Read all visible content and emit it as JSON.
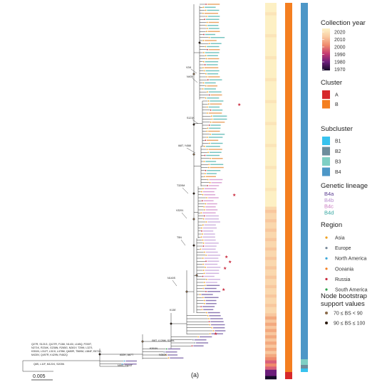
{
  "legend": {
    "collection_year": {
      "title": "Collection year",
      "ticks": [
        "2020",
        "2010",
        "2000",
        "1990",
        "1980",
        "1970"
      ],
      "colors": [
        "#fdf3c8",
        "#f9c9a0",
        "#ef8a6c",
        "#c63a72",
        "#6b1d7a",
        "#150b28"
      ]
    },
    "cluster": {
      "title": "Cluster",
      "items": [
        {
          "label": "A",
          "color": "#d7282a"
        },
        {
          "label": "B",
          "color": "#f47f20"
        }
      ]
    },
    "subcluster": {
      "title": "Subcluster",
      "items": [
        {
          "label": "B1",
          "color": "#37c2ee"
        },
        {
          "label": "B2",
          "color": "#6d8d9c"
        },
        {
          "label": "B3",
          "color": "#7fcfc4"
        },
        {
          "label": "B4",
          "color": "#4d97c7"
        }
      ]
    },
    "genetic_lineage": {
      "title": "Genetic lineage",
      "items": [
        {
          "label": "B4a",
          "color": "#5b3d91"
        },
        {
          "label": "B4b",
          "color": "#b98fd0"
        },
        {
          "label": "B4c",
          "color": "#c879c0"
        },
        {
          "label": "B4d",
          "color": "#33a6a0"
        }
      ]
    },
    "region": {
      "title": "Region",
      "items": [
        {
          "label": "Asia",
          "color": "#f0a020"
        },
        {
          "label": "Europe",
          "color": "#7a8a9a"
        },
        {
          "label": "North America",
          "color": "#3aa7d9"
        },
        {
          "label": "Oceania",
          "color": "#f47f20"
        },
        {
          "label": "Russia",
          "color": "#c8263a"
        },
        {
          "label": "South America",
          "color": "#2aa04a"
        }
      ]
    },
    "bootstrap": {
      "title_line1": "Node bootstrap",
      "title_line2": "support values",
      "items": [
        {
          "label": "70 ≤ BS < 90",
          "color": "#8a6a4a"
        },
        {
          "label": "90 ≤ BS ≤ 100",
          "color": "#2a1a10"
        }
      ]
    }
  },
  "mutations": {
    "m1": "V24I",
    "m2": "N40D",
    "m3": "S121K",
    "m4": "I68T, Y458I",
    "m5": "T329M",
    "m6": "V3291",
    "m7": "T5N",
    "m8": "N140S",
    "m9": "K13E",
    "m10": "I58T, L126M, S255L",
    "m11": "K391N",
    "m12": "N363K",
    "m13": "A52K, A67T",
    "m14": "N95T, P603T",
    "root_line1": "Q27R, S121G, Q127R, F136I, N143I, L165Q, P200T,",
    "root_line2": "N271K, R234K, G236N, R265G, N281Y, T29M, L327I,",
    "root_line3": "K351N, L312T, L313I, L478M, Q489R, T569M, L584F, E671K,",
    "root_line4": "M430V, Q497R, K429N, R462Q",
    "root_line5": "Q8S, L11F, M121K, S203N"
  },
  "scale_bar": "0.005",
  "panel_label": "(a)"
}
